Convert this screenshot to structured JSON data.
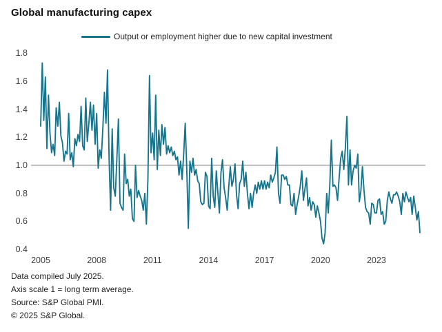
{
  "title": "Global manufacturing capex",
  "legend": {
    "label": "Output or employment higher due to new capital investment"
  },
  "footer": {
    "lines": [
      "Data compiled July 2025.",
      "Axis scale 1 = long term average.",
      "Source: S&P Global PMI.",
      "© 2025 S&P Global."
    ]
  },
  "chart_data": {
    "type": "line",
    "title": "Global manufacturing capex",
    "series_name": "Output or employment higher due to new capital investment",
    "x_start_year": 2005,
    "x_frequency": "monthly",
    "x_end": "May 2025",
    "ylim": [
      0.4,
      1.8
    ],
    "baseline": 1.0,
    "grid": "baseline-only",
    "legend_position": "top",
    "line_color": "#16758c",
    "baseline_color": "#9b9b9b",
    "y_ticks": [
      "0.4",
      "0.6",
      "0.8",
      "1.0",
      "1.2",
      "1.4",
      "1.6",
      "1.8"
    ],
    "x_ticks": [
      "2005",
      "2008",
      "2011",
      "2014",
      "2017",
      "2020",
      "2023"
    ],
    "values": [
      1.28,
      1.73,
      1.32,
      1.63,
      1.12,
      1.5,
      1.23,
      1.09,
      1.15,
      1.07,
      1.41,
      1.28,
      1.45,
      1.21,
      1.16,
      1.03,
      1.1,
      1.08,
      1.37,
      1.04,
      1.09,
      0.99,
      1.19,
      1.14,
      1.22,
      1.17,
      1.42,
      1.14,
      1.11,
      1.48,
      1.17,
      1.3,
      1.45,
      1.25,
      1.43,
      1.15,
      1.37,
      0.98,
      1.11,
      1.05,
      1.27,
      1.52,
      1.3,
      1.68,
      1.05,
      0.68,
      1.26,
      0.84,
      0.78,
      1.05,
      1.33,
      0.73,
      0.7,
      0.68,
      1.08,
      0.87,
      0.9,
      0.78,
      0.83,
      0.62,
      0.6,
      1.0,
      0.77,
      0.82,
      0.78,
      0.75,
      0.68,
      0.8,
      0.58,
      0.9,
      1.64,
      1.09,
      1.23,
      1.04,
      1.5,
      0.97,
      1.25,
      1.07,
      1.29,
      1.15,
      1.27,
      1.08,
      1.14,
      1.09,
      1.13,
      1.07,
      1.1,
      1.04,
      1.06,
      0.93,
      1.03,
      0.9,
      1.08,
      1.3,
      0.97,
      0.55,
      1.03,
      0.95,
      1.05,
      0.93,
      0.97,
      0.89,
      0.87,
      0.74,
      0.72,
      0.73,
      0.95,
      0.92,
      0.71,
      0.69,
      1.05,
      0.78,
      0.7,
      0.96,
      0.8,
      0.66,
      0.95,
      1.04,
      0.84,
      0.77,
      0.68,
      0.85,
      0.99,
      0.85,
      0.9,
      1.01,
      0.79,
      0.69,
      0.87,
      0.9,
      1.03,
      0.85,
      0.95,
      0.8,
      0.69,
      0.8,
      0.7,
      0.8,
      0.86,
      0.8,
      0.88,
      0.83,
      0.89,
      0.83,
      0.89,
      0.83,
      0.88,
      0.84,
      0.93,
      0.88,
      0.91,
      0.95,
      1.13,
      0.8,
      0.73,
      0.93,
      0.93,
      0.9,
      0.92,
      0.86,
      0.86,
      0.72,
      0.71,
      0.8,
      0.65,
      0.72,
      0.78,
      0.85,
      0.96,
      0.75,
      0.83,
      0.91,
      0.71,
      0.77,
      0.68,
      0.74,
      0.72,
      0.63,
      0.71,
      0.66,
      0.6,
      0.48,
      0.44,
      0.52,
      0.8,
      0.66,
      0.86,
      1.18,
      0.85,
      0.86,
      0.84,
      0.75,
      0.91,
      1.05,
      1.1,
      0.97,
      1.12,
      1.35,
      0.86,
      1.11,
      0.86,
      0.96,
      1.0,
      0.98,
      1.08,
      0.74,
      0.82,
      0.99,
      0.82,
      0.7,
      0.67,
      0.66,
      0.58,
      0.73,
      0.72,
      0.66,
      0.66,
      0.75,
      0.76,
      0.65,
      0.67,
      0.58,
      0.6,
      0.75,
      0.81,
      0.76,
      0.73,
      0.79,
      0.79,
      0.81,
      0.78,
      0.74,
      0.65,
      0.8,
      0.74,
      0.81,
      0.77,
      0.74,
      0.77,
      0.65,
      0.78,
      0.7,
      0.61,
      0.67,
      0.52
    ]
  }
}
